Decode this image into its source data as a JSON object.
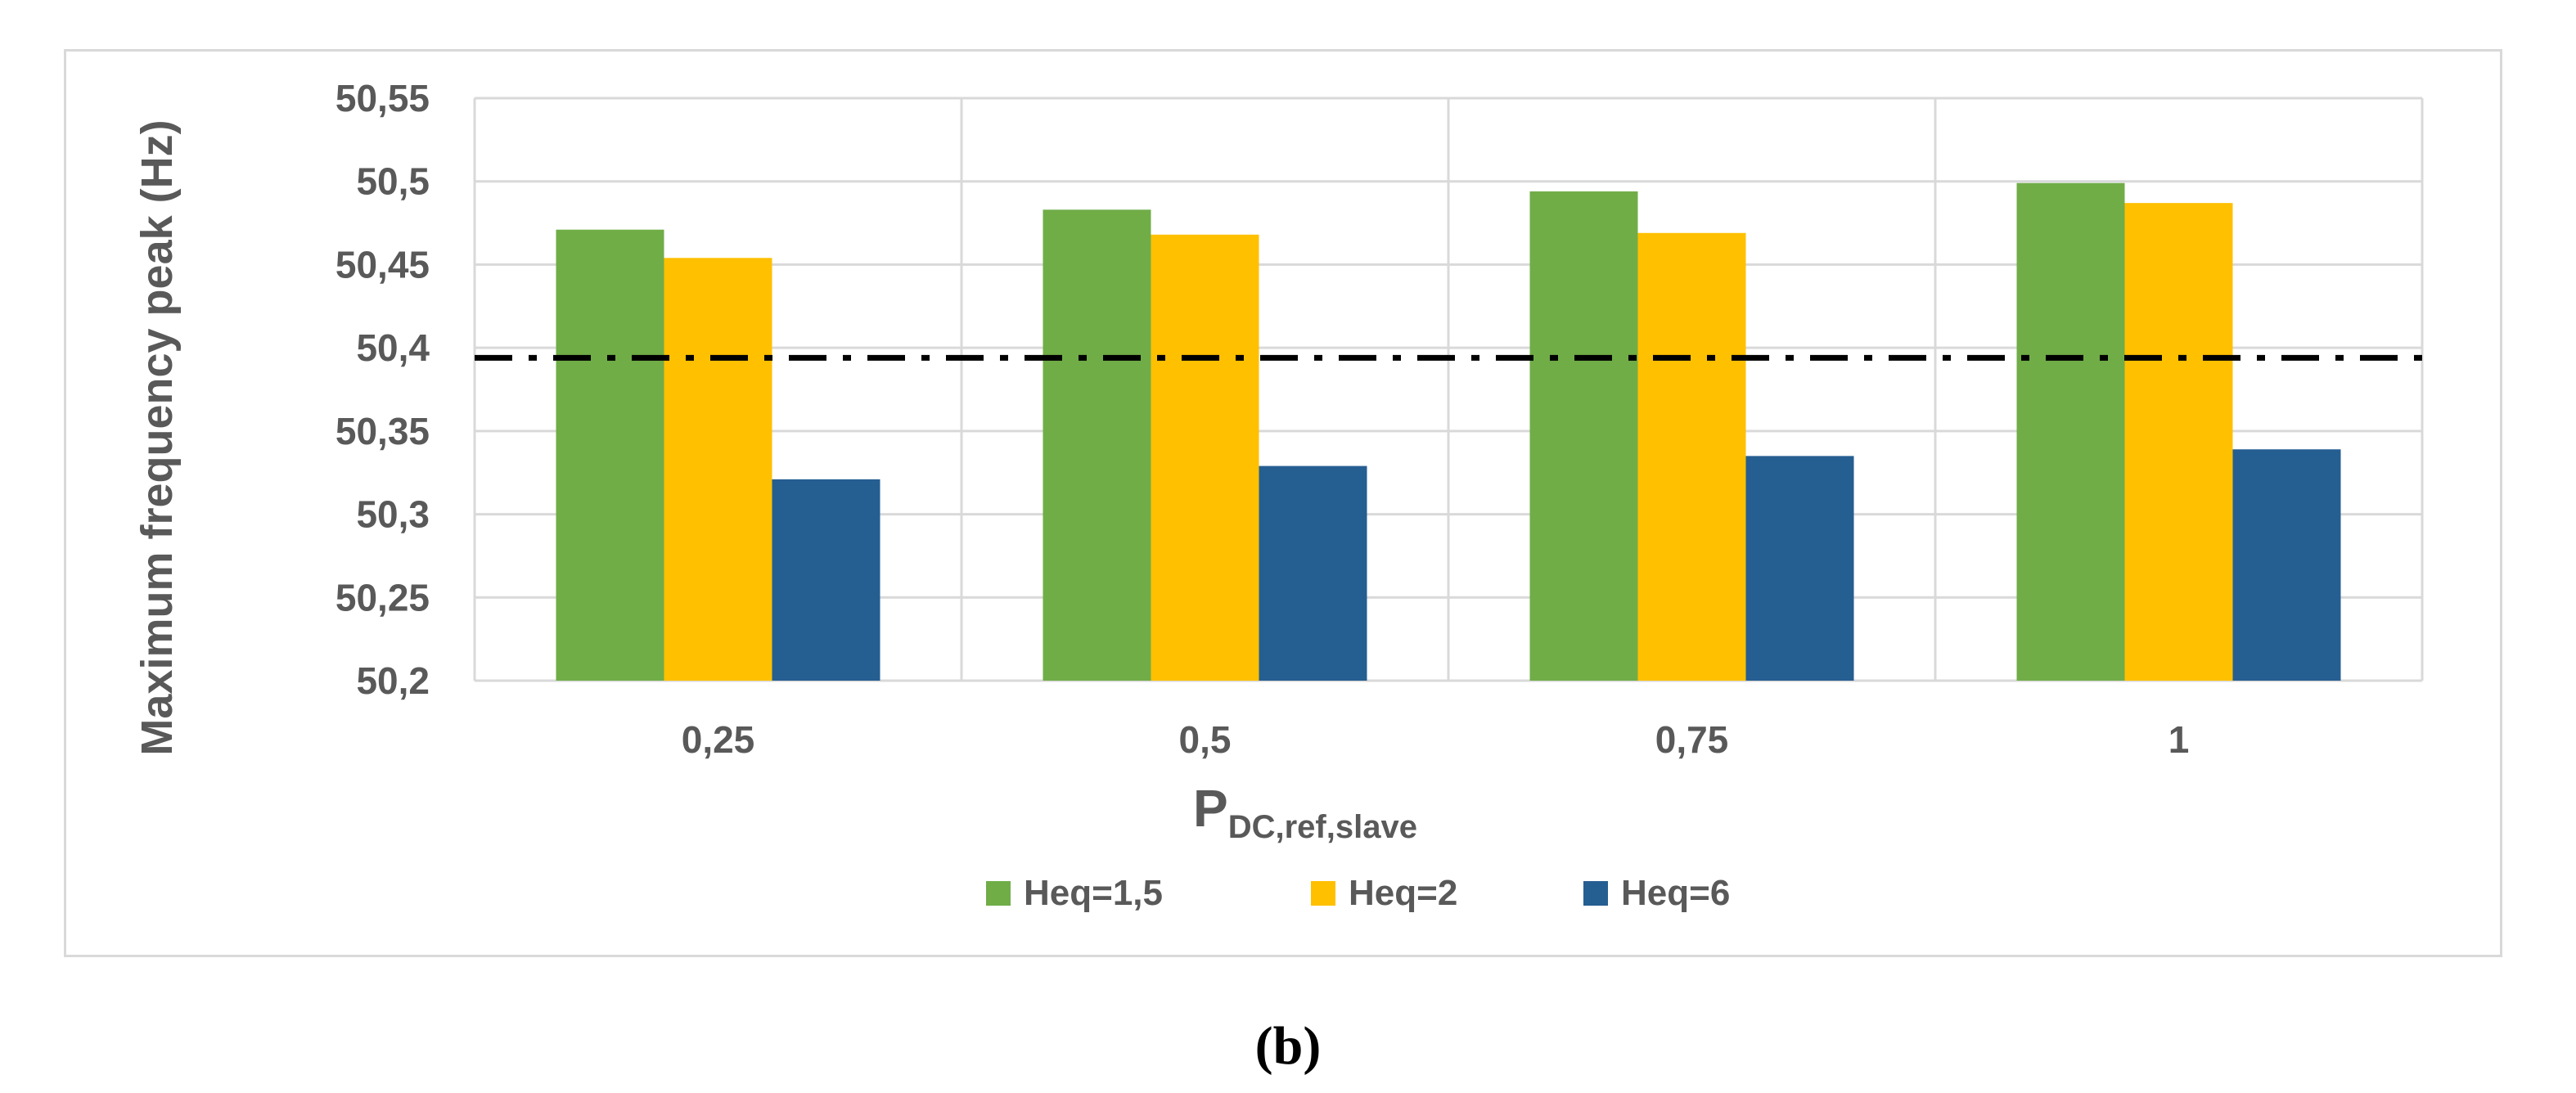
{
  "chart_data": {
    "type": "bar",
    "title": "",
    "xlabel": "P",
    "xlabel_subscript": "DC,ref,slave",
    "ylabel": "Maximum frequency peak (Hz)",
    "categories": [
      "0,25",
      "0,5",
      "0,75",
      "1"
    ],
    "series": [
      {
        "name": "Heq=1,5",
        "color": "#70ad47",
        "values": [
          50.471,
          50.483,
          50.494,
          50.499
        ]
      },
      {
        "name": "Heq=2",
        "color": "#ffc000",
        "values": [
          50.454,
          50.468,
          50.469,
          50.487
        ]
      },
      {
        "name": "Heq=6",
        "color": "#255e91",
        "values": [
          50.321,
          50.329,
          50.335,
          50.339
        ]
      }
    ],
    "ylim": [
      50.2,
      50.55
    ],
    "yticks": [
      50.2,
      50.25,
      50.3,
      50.35,
      50.4,
      50.45,
      50.5,
      50.55
    ],
    "ytick_labels": [
      "50,2",
      "50,25",
      "50,3",
      "50,35",
      "50,4",
      "50,45",
      "50,5",
      "50,55"
    ],
    "reference_line": {
      "value": 50.394,
      "style": "dash-dot",
      "color": "#000000"
    },
    "grid": true,
    "legend_position": "bottom"
  },
  "caption": "(b)"
}
